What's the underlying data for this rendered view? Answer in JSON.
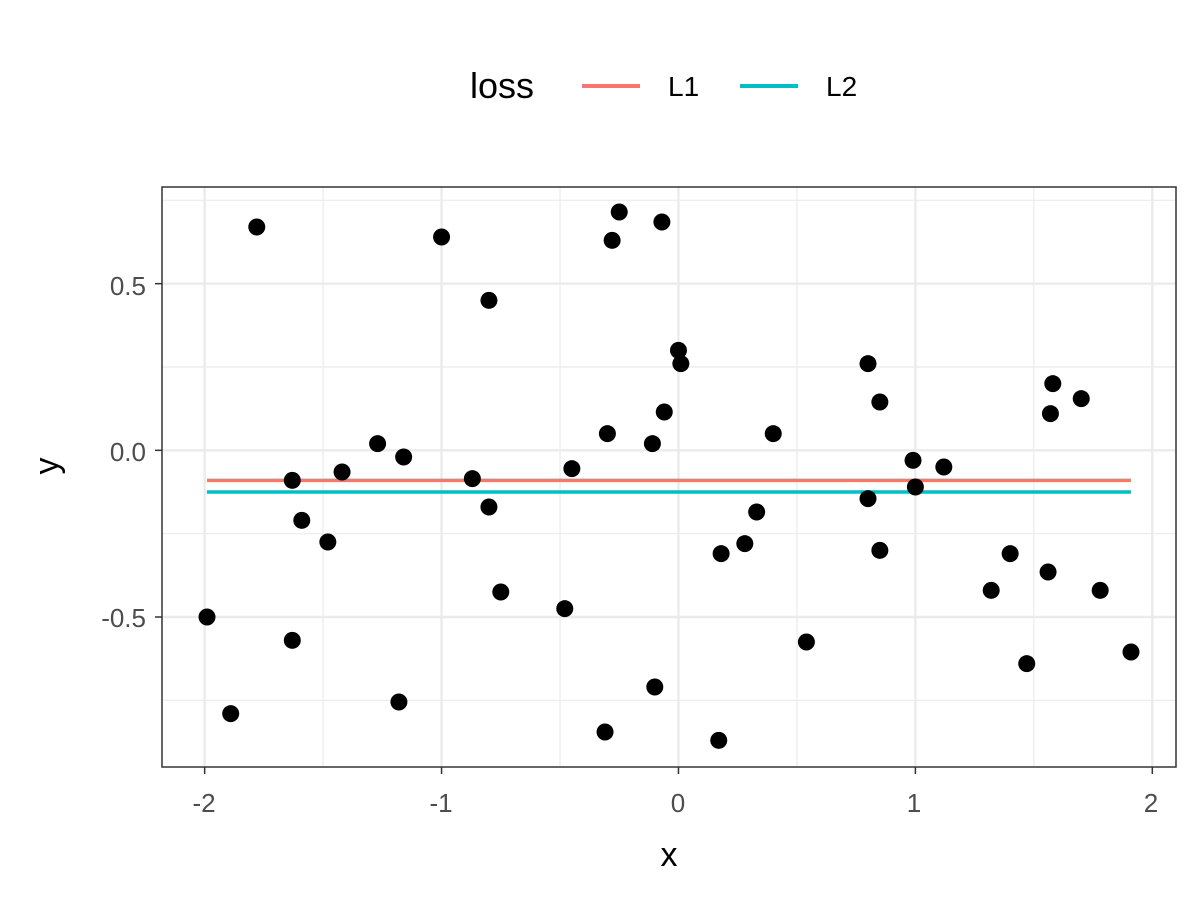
{
  "chart_data": {
    "type": "scatter",
    "title": "",
    "xlabel": "x",
    "ylabel": "y",
    "xlim": [
      -2.18,
      2.1
    ],
    "ylim": [
      -0.95,
      0.79
    ],
    "x_ticks": [
      -2,
      -1,
      0,
      1,
      2
    ],
    "x_tick_labels": [
      "-2",
      "-1",
      "0",
      "1",
      "2"
    ],
    "y_ticks": [
      -0.5,
      0.0,
      0.5
    ],
    "y_tick_labels": [
      "-0.5",
      "0.0",
      "0.5"
    ],
    "grid": true,
    "legend": {
      "title": "loss",
      "position": "top",
      "entries": [
        {
          "label": "L1",
          "color": "#F8766D"
        },
        {
          "label": "L2",
          "color": "#00BFC4"
        }
      ]
    },
    "points": {
      "color": "#000000",
      "x": [
        -1.99,
        -1.89,
        -1.78,
        -1.63,
        -1.63,
        -1.59,
        -1.48,
        -1.42,
        -1.27,
        -1.18,
        -1.16,
        -1.0,
        -0.87,
        -0.8,
        -0.8,
        -0.75,
        -0.48,
        -0.45,
        -0.31,
        -0.3,
        -0.28,
        -0.25,
        -0.11,
        -0.1,
        -0.07,
        -0.06,
        0.0,
        0.01,
        0.17,
        0.18,
        0.28,
        0.33,
        0.4,
        0.54,
        0.8,
        0.8,
        0.85,
        0.85,
        0.99,
        1.0,
        1.12,
        1.32,
        1.4,
        1.47,
        1.56,
        1.57,
        1.58,
        1.7,
        1.78,
        1.91
      ],
      "y": [
        -0.5,
        -0.79,
        0.67,
        -0.09,
        -0.57,
        -0.21,
        -0.275,
        -0.065,
        0.02,
        -0.755,
        -0.02,
        0.64,
        -0.085,
        0.45,
        -0.17,
        -0.425,
        -0.475,
        -0.055,
        -0.845,
        0.05,
        0.63,
        0.715,
        0.02,
        -0.71,
        0.685,
        0.115,
        0.3,
        0.26,
        -0.87,
        -0.31,
        -0.28,
        -0.185,
        0.05,
        -0.575,
        0.26,
        -0.145,
        0.145,
        -0.3,
        -0.03,
        -0.11,
        -0.05,
        -0.42,
        -0.31,
        -0.64,
        -0.365,
        0.11,
        0.2,
        0.155,
        -0.42,
        -0.605
      ]
    },
    "series": [
      {
        "name": "L1",
        "color": "#F8766D",
        "x": [
          -1.99,
          1.91
        ],
        "y": [
          -0.09,
          -0.09
        ]
      },
      {
        "name": "L2",
        "color": "#00BFC4",
        "x": [
          -1.99,
          1.91
        ],
        "y": [
          -0.125,
          -0.125
        ]
      }
    ]
  }
}
